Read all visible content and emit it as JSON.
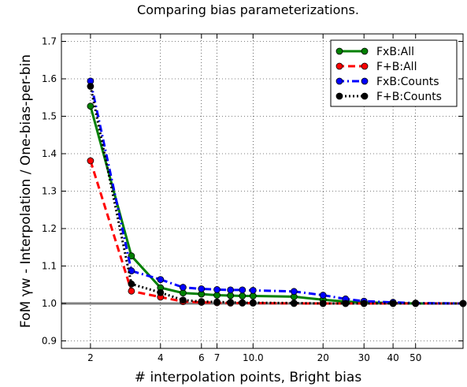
{
  "chart_data": {
    "type": "line",
    "title": "Comparing bias parameterizations.",
    "xlabel": "# interpolation points, Bright bias",
    "ylabel": "FoM γw - Interpolation / One-bias-per-bin",
    "xscale": "log",
    "xlim": [
      1.5,
      80
    ],
    "ylim": [
      0.88,
      1.72
    ],
    "x_ticks": [
      2,
      4,
      6,
      7,
      10,
      20,
      30,
      40,
      50
    ],
    "x_tick_labels": [
      "2",
      "4",
      "6",
      "7",
      "10.0",
      "20",
      "30",
      "40",
      "50"
    ],
    "y_ticks": [
      0.9,
      1.0,
      1.1,
      1.2,
      1.3,
      1.4,
      1.5,
      1.6,
      1.7
    ],
    "y_tick_labels": [
      "0.9",
      "1.0",
      "1.1",
      "1.2",
      "1.3",
      "1.4",
      "1.5",
      "1.6",
      "1.7"
    ],
    "reference_line": 1.0,
    "grid": true,
    "legend_position": "top-right",
    "series": [
      {
        "name": "FxB:All",
        "color": "#008000",
        "style": "solid",
        "x": [
          2,
          3,
          4,
          5,
          6,
          7,
          8,
          9,
          10,
          15,
          20,
          25,
          30,
          40,
          50,
          80
        ],
        "y": [
          1.527,
          1.127,
          1.042,
          1.028,
          1.025,
          1.022,
          1.021,
          1.02,
          1.02,
          1.018,
          1.01,
          1.005,
          1.003,
          1.001,
          1.0,
          1.0
        ]
      },
      {
        "name": "F+B:All",
        "color": "#ff0000",
        "style": "dashed",
        "x": [
          2,
          3,
          4,
          5,
          6,
          7,
          8,
          9,
          10,
          15,
          20,
          25,
          30,
          40,
          50,
          80
        ],
        "y": [
          1.381,
          1.033,
          1.017,
          1.005,
          1.003,
          1.002,
          1.001,
          1.001,
          1.001,
          1.0,
          1.0,
          1.0,
          1.0,
          1.0,
          1.0,
          1.0
        ]
      },
      {
        "name": "FxB:Counts",
        "color": "#0000ff",
        "style": "dashdot",
        "x": [
          2,
          3,
          4,
          5,
          6,
          7,
          8,
          9,
          10,
          15,
          20,
          25,
          30,
          40,
          50,
          80
        ],
        "y": [
          1.594,
          1.087,
          1.064,
          1.043,
          1.039,
          1.037,
          1.036,
          1.036,
          1.035,
          1.032,
          1.022,
          1.012,
          1.006,
          1.003,
          1.001,
          1.0
        ]
      },
      {
        "name": "F+B:Counts",
        "color": "#000000",
        "style": "dotted",
        "x": [
          2,
          3,
          4,
          5,
          6,
          7,
          8,
          9,
          10,
          15,
          20,
          25,
          30,
          40,
          50,
          80
        ],
        "y": [
          1.58,
          1.052,
          1.029,
          1.009,
          1.005,
          1.004,
          1.003,
          1.002,
          1.002,
          1.001,
          1.0,
          1.0,
          1.0,
          1.0,
          1.0,
          1.0
        ]
      }
    ]
  }
}
